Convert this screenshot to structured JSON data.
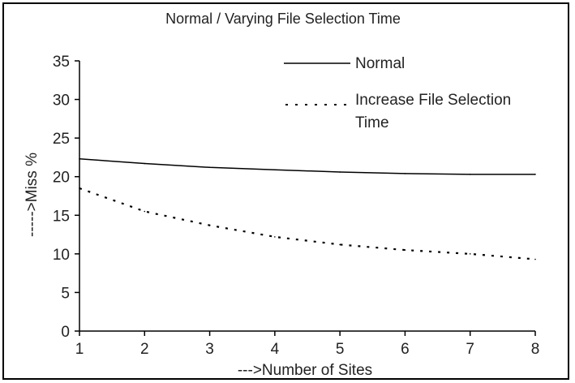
{
  "chart_data": {
    "type": "line",
    "title": "Normal / Varying File Selection Time",
    "xlabel": "--->Number of Sites",
    "ylabel": "----->Miss %",
    "x": [
      1,
      2,
      3,
      4,
      5,
      6,
      7,
      8
    ],
    "xlim": [
      1,
      8
    ],
    "ylim": [
      0,
      35
    ],
    "yticks": [
      0,
      5,
      10,
      15,
      20,
      25,
      30,
      35
    ],
    "grid": false,
    "legend_position": "top-right",
    "series": [
      {
        "name": "Normal",
        "style": "solid",
        "values": [
          22.3,
          21.7,
          21.2,
          20.9,
          20.6,
          20.4,
          20.3,
          20.3
        ]
      },
      {
        "name": "Increase File Selection Time",
        "style": "dotted",
        "values": [
          18.5,
          15.5,
          13.7,
          12.2,
          11.2,
          10.5,
          10.0,
          9.3
        ]
      }
    ]
  }
}
